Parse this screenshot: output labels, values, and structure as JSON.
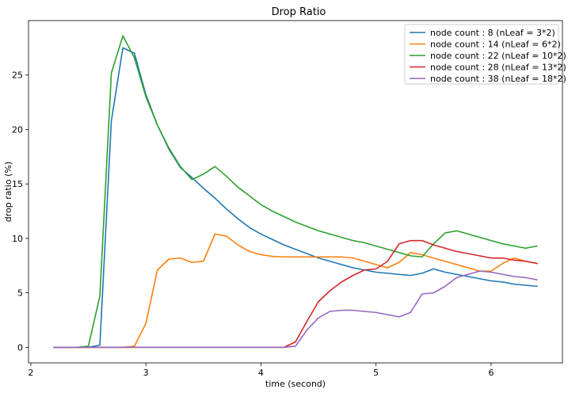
{
  "chart_data": {
    "type": "line",
    "title": "Drop Ratio",
    "xlabel": "time (second)",
    "ylabel": "drop ratio (%)",
    "xlim": [
      1.98,
      6.62
    ],
    "ylim": [
      -1.43,
      30.0
    ],
    "xticks": [
      2,
      3,
      4,
      5,
      6
    ],
    "yticks": [
      0,
      5,
      10,
      15,
      20,
      25
    ],
    "grid": false,
    "legend_position": "top-right",
    "x": [
      2.2,
      2.3,
      2.4,
      2.5,
      2.6,
      2.7,
      2.8,
      2.9,
      3.0,
      3.1,
      3.2,
      3.3,
      3.4,
      3.5,
      3.6,
      3.7,
      3.8,
      3.9,
      4.0,
      4.1,
      4.2,
      4.3,
      4.4,
      4.5,
      4.6,
      4.7,
      4.8,
      4.9,
      5.0,
      5.1,
      5.2,
      5.3,
      5.4,
      5.5,
      5.6,
      5.7,
      5.8,
      5.9,
      6.0,
      6.1,
      6.2,
      6.3,
      6.4
    ],
    "series": [
      {
        "name": "node count : 8 (nLeaf = 3*2)",
        "color": "#1f77b4",
        "values": [
          0,
          0,
          0,
          0,
          0.2,
          20.8,
          27.5,
          27.0,
          23.2,
          20.4,
          18.2,
          16.5,
          15.6,
          14.6,
          13.7,
          12.7,
          11.8,
          11.0,
          10.4,
          9.9,
          9.4,
          9.0,
          8.6,
          8.2,
          7.9,
          7.6,
          7.3,
          7.1,
          6.9,
          6.8,
          6.7,
          6.6,
          6.8,
          7.2,
          6.9,
          6.7,
          6.5,
          6.3,
          6.1,
          6.0,
          5.8,
          5.7,
          5.6
        ]
      },
      {
        "name": "node count : 14 (nLeaf = 6*2)",
        "color": "#ff7f0e",
        "values": [
          0,
          0,
          0,
          0,
          0,
          0,
          0,
          0.1,
          2.2,
          7.1,
          8.1,
          8.2,
          7.8,
          7.9,
          10.4,
          10.2,
          9.4,
          8.8,
          8.5,
          8.35,
          8.3,
          8.3,
          8.3,
          8.3,
          8.3,
          8.3,
          8.2,
          7.9,
          7.6,
          7.3,
          7.8,
          8.7,
          8.5,
          8.2,
          7.9,
          7.6,
          7.3,
          7.0,
          7.0,
          7.7,
          8.2,
          7.9,
          7.7
        ]
      },
      {
        "name": "node count : 22 (nLeaf = 10*2)",
        "color": "#2ca02c",
        "values": [
          0,
          0,
          0,
          0.1,
          4.7,
          25.2,
          28.6,
          26.6,
          23.0,
          20.4,
          18.3,
          16.6,
          15.4,
          15.9,
          16.6,
          15.7,
          14.7,
          13.9,
          13.1,
          12.5,
          12.0,
          11.5,
          11.1,
          10.7,
          10.4,
          10.1,
          9.8,
          9.6,
          9.3,
          9.0,
          8.7,
          8.4,
          8.3,
          9.5,
          10.5,
          10.7,
          10.4,
          10.1,
          9.8,
          9.5,
          9.3,
          9.1,
          9.3
        ]
      },
      {
        "name": "node count : 28 (nLeaf = 13*2)",
        "color": "#d62728",
        "values": [
          0,
          0,
          0,
          0,
          0,
          0,
          0,
          0,
          0,
          0,
          0,
          0,
          0,
          0,
          0,
          0,
          0,
          0,
          0,
          0,
          0,
          0.5,
          2.4,
          4.2,
          5.2,
          6.0,
          6.6,
          7.1,
          7.2,
          7.9,
          9.5,
          9.8,
          9.8,
          9.4,
          9.1,
          8.8,
          8.6,
          8.4,
          8.2,
          8.2,
          8.0,
          7.9,
          7.7
        ]
      },
      {
        "name": "node count : 38 (nLeaf = 18*2)",
        "color": "#9467bd",
        "values": [
          0,
          0,
          0,
          0,
          0,
          0,
          0,
          0,
          0,
          0,
          0,
          0,
          0,
          0,
          0,
          0,
          0,
          0,
          0,
          0,
          0,
          0.1,
          1.6,
          2.7,
          3.3,
          3.4,
          3.4,
          3.3,
          3.2,
          3.0,
          2.8,
          3.2,
          4.9,
          5.0,
          5.6,
          6.4,
          6.7,
          7.0,
          6.9,
          6.7,
          6.5,
          6.4,
          6.2
        ]
      }
    ]
  }
}
